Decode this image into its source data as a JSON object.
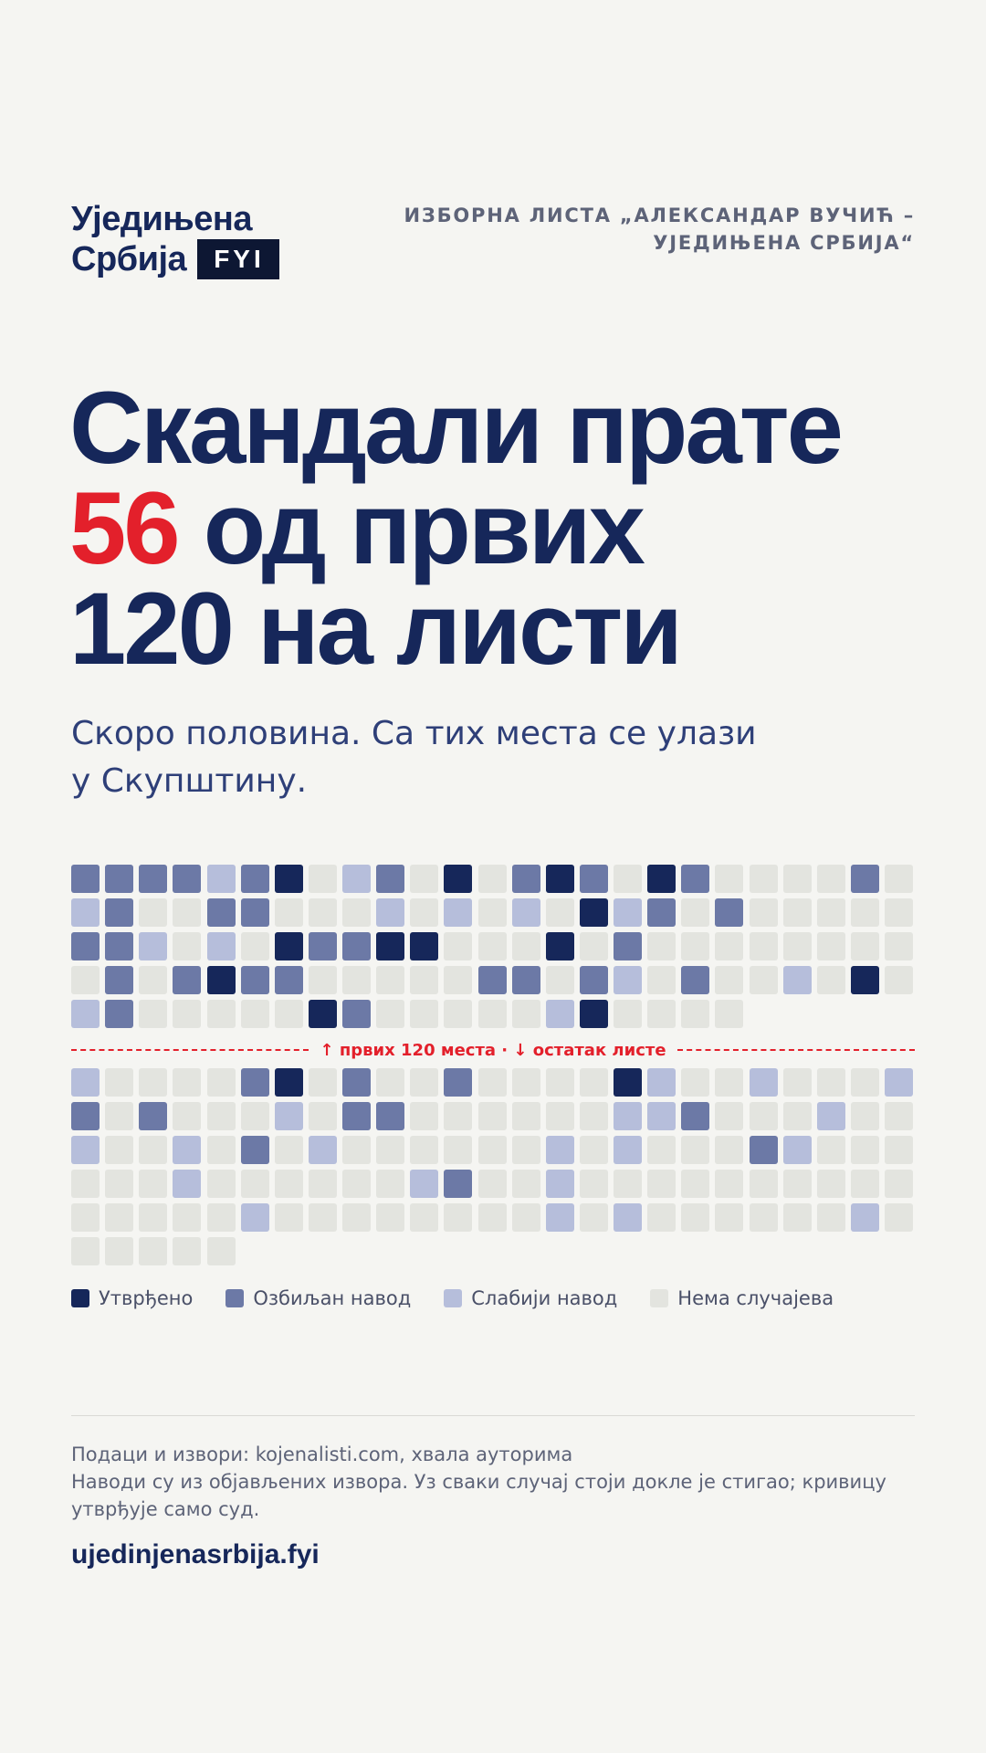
{
  "brand": {
    "logo_line1": "Уједињена",
    "logo_line2": "Србија",
    "logo_badge": "FYI",
    "list_name_line1": "ИЗБОРНА ЛИСТА „АЛЕКСАНДАР ВУЧИЋ –",
    "list_name_line2": "УЈЕДИЊЕНА СРБИЈА“"
  },
  "headline": {
    "line1": "Скандали прате",
    "number": "56",
    "line2_rest": " од првих",
    "line3": "120 на листи"
  },
  "subhead": {
    "line1": "Скоро половина. Са тих места се улази",
    "line2": "у Скупштину."
  },
  "divider_label": "↑ првих 120 места · ↓ остатак листе",
  "colors": {
    "confirmed": "#16275a",
    "serious": "#6c79a6",
    "weaker": "#b6bedb",
    "none": "#e3e4df",
    "accent": "#e3202b",
    "background": "#f5f5f2"
  },
  "grid": {
    "legend_levels": {
      "3": "Утврђено",
      "2": "Озбиљан навод",
      "1": "Слабији навод",
      "0": "Нема случајева"
    },
    "top_rows": [
      [
        2,
        2,
        2,
        2,
        1,
        2,
        3,
        0,
        1,
        2,
        0,
        3,
        0,
        2,
        3,
        2,
        0,
        3,
        2,
        0,
        0,
        0,
        0,
        2,
        0
      ],
      [
        1,
        2,
        0,
        0,
        2,
        2,
        0,
        0,
        0,
        1,
        0,
        1,
        0,
        1,
        0,
        3,
        1,
        2,
        0,
        2,
        0,
        0,
        0,
        0,
        0
      ],
      [
        2,
        2,
        1,
        0,
        1,
        0,
        3,
        2,
        2,
        3,
        3,
        0,
        0,
        0,
        3,
        0,
        2,
        0,
        0,
        0,
        0,
        0,
        0,
        0,
        0
      ],
      [
        0,
        2,
        0,
        2,
        3,
        2,
        2,
        0,
        0,
        0,
        0,
        0,
        2,
        2,
        0,
        2,
        1,
        0,
        2,
        0,
        0,
        1,
        0,
        3,
        0
      ],
      [
        1,
        2,
        0,
        0,
        0,
        0,
        0,
        3,
        2,
        0,
        0,
        0,
        0,
        0,
        1,
        3,
        0,
        0,
        0,
        0
      ]
    ],
    "bottom_rows": [
      [
        1,
        0,
        0,
        0,
        0,
        2,
        3,
        0,
        2,
        0,
        0,
        2,
        0,
        0,
        0,
        0,
        3,
        1,
        0,
        0,
        1,
        0,
        0,
        0,
        1
      ],
      [
        2,
        0,
        2,
        0,
        0,
        0,
        1,
        0,
        2,
        2,
        0,
        0,
        0,
        0,
        0,
        0,
        1,
        1,
        2,
        0,
        0,
        0,
        1,
        0,
        0
      ],
      [
        1,
        0,
        0,
        1,
        0,
        2,
        0,
        1,
        0,
        0,
        0,
        0,
        0,
        0,
        1,
        0,
        1,
        0,
        0,
        0,
        2,
        1,
        0,
        0,
        0
      ],
      [
        0,
        0,
        0,
        1,
        0,
        0,
        0,
        0,
        0,
        0,
        1,
        2,
        0,
        0,
        1,
        0,
        0,
        0,
        0,
        0,
        0,
        0,
        0,
        0,
        0
      ],
      [
        0,
        0,
        0,
        0,
        0,
        1,
        0,
        0,
        0,
        0,
        0,
        0,
        0,
        0,
        1,
        0,
        1,
        0,
        0,
        0,
        0,
        0,
        0,
        1,
        0
      ],
      [
        0,
        0,
        0,
        0,
        0
      ]
    ]
  },
  "legend": [
    {
      "key": "confirmed",
      "label": "Утврђено"
    },
    {
      "key": "serious",
      "label": "Озбиљан навод"
    },
    {
      "key": "weaker",
      "label": "Слабији навод"
    },
    {
      "key": "none",
      "label": "Нема случајева"
    }
  ],
  "footer": {
    "sources": "Подаци и извори: kojenalisti.com, хвала ауторима",
    "disclaimer": "Наводи су из објављених извора. Уз сваки случај стоји докле је стигао; кривицу утврђује само суд.",
    "site": "ujedinjenasrbija.fyi"
  }
}
